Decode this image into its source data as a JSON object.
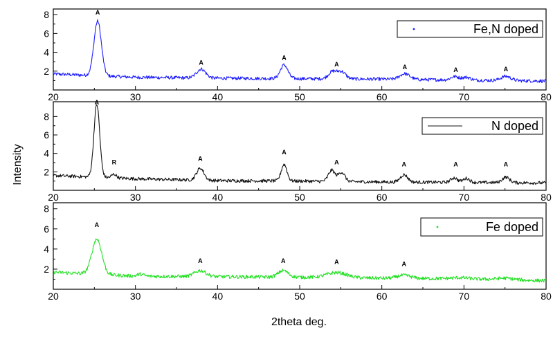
{
  "figure": {
    "ylabel": "Intensity",
    "xlabel": "2theta deg."
  },
  "chart_data": [
    {
      "type": "line",
      "legend": "Fe,N doped",
      "color": "#1a1aff",
      "xlim": [
        20,
        80
      ],
      "ylim": [
        0,
        8.6
      ],
      "xticks": [
        "20",
        "30",
        "40",
        "50",
        "60",
        "70",
        "80"
      ],
      "yticks": [
        "2",
        "4",
        "6",
        "8"
      ],
      "ytick_values": [
        2,
        4,
        6,
        8
      ],
      "baseline": [
        [
          20,
          1.7
        ],
        [
          30,
          1.35
        ],
        [
          40,
          1.25
        ],
        [
          50,
          1.2
        ],
        [
          60,
          1.15
        ],
        [
          70,
          1.05
        ],
        [
          80,
          0.95
        ]
      ],
      "peaks": [
        {
          "x": 25.4,
          "height": 5.8,
          "width": 0.45
        },
        {
          "x": 38.0,
          "height": 0.95,
          "width": 0.55
        },
        {
          "x": 48.1,
          "height": 1.45,
          "width": 0.45
        },
        {
          "x": 54.0,
          "height": 0.75,
          "width": 0.5
        },
        {
          "x": 55.1,
          "height": 0.75,
          "width": 0.5
        },
        {
          "x": 62.8,
          "height": 0.6,
          "width": 0.6
        },
        {
          "x": 68.9,
          "height": 0.35,
          "width": 0.5
        },
        {
          "x": 70.3,
          "height": 0.3,
          "width": 0.5
        },
        {
          "x": 75.1,
          "height": 0.45,
          "width": 0.6
        }
      ],
      "annotations": [
        {
          "text": "A",
          "x": 25.4,
          "y": 8.0
        },
        {
          "text": "A",
          "x": 38.0,
          "y": 2.7
        },
        {
          "text": "A",
          "x": 48.1,
          "y": 3.2
        },
        {
          "text": "A",
          "x": 54.5,
          "y": 2.5
        },
        {
          "text": "A",
          "x": 62.8,
          "y": 2.2
        },
        {
          "text": "A",
          "x": 69.0,
          "y": 1.9
        },
        {
          "text": "A",
          "x": 75.1,
          "y": 2.0
        }
      ]
    },
    {
      "type": "line",
      "legend": "N doped",
      "color": "#111111",
      "xlim": [
        20,
        80
      ],
      "ylim": [
        0,
        9.6
      ],
      "xticks": [
        "20",
        "30",
        "40",
        "50",
        "60",
        "70",
        "80"
      ],
      "yticks": [
        "2",
        "4",
        "6",
        "8"
      ],
      "ytick_values": [
        2,
        4,
        6,
        8
      ],
      "baseline": [
        [
          20,
          1.6
        ],
        [
          30,
          1.25
        ],
        [
          40,
          1.05
        ],
        [
          50,
          1.0
        ],
        [
          60,
          0.9
        ],
        [
          70,
          0.85
        ],
        [
          80,
          0.8
        ]
      ],
      "peaks": [
        {
          "x": 25.3,
          "height": 7.9,
          "width": 0.35
        },
        {
          "x": 27.4,
          "height": 0.4,
          "width": 0.3
        },
        {
          "x": 37.9,
          "height": 1.3,
          "width": 0.45
        },
        {
          "x": 48.1,
          "height": 1.8,
          "width": 0.35
        },
        {
          "x": 53.9,
          "height": 1.2,
          "width": 0.4
        },
        {
          "x": 55.1,
          "height": 1.0,
          "width": 0.4
        },
        {
          "x": 62.7,
          "height": 0.8,
          "width": 0.45
        },
        {
          "x": 68.8,
          "height": 0.5,
          "width": 0.4
        },
        {
          "x": 70.3,
          "height": 0.45,
          "width": 0.4
        },
        {
          "x": 75.1,
          "height": 0.6,
          "width": 0.45
        }
      ],
      "annotations": [
        {
          "text": "A",
          "x": 25.3,
          "y": 9.3
        },
        {
          "text": "R",
          "x": 27.4,
          "y": 2.8
        },
        {
          "text": "A",
          "x": 37.9,
          "y": 3.2
        },
        {
          "text": "A",
          "x": 48.1,
          "y": 3.9
        },
        {
          "text": "A",
          "x": 54.5,
          "y": 2.8
        },
        {
          "text": "A",
          "x": 62.7,
          "y": 2.6
        },
        {
          "text": "A",
          "x": 69.0,
          "y": 2.6
        },
        {
          "text": "A",
          "x": 75.1,
          "y": 2.6
        }
      ]
    },
    {
      "type": "line",
      "legend": "Fe doped",
      "color": "#22e022",
      "xlim": [
        20,
        80
      ],
      "ylim": [
        0,
        8.6
      ],
      "xticks": [
        "20",
        "30",
        "40",
        "50",
        "60",
        "70",
        "80"
      ],
      "yticks": [
        "2",
        "4",
        "6",
        "8"
      ],
      "ytick_values": [
        2,
        4,
        6,
        8
      ],
      "baseline": [
        [
          20,
          1.7
        ],
        [
          30,
          1.3
        ],
        [
          40,
          1.25
        ],
        [
          50,
          1.2
        ],
        [
          60,
          1.1
        ],
        [
          70,
          1.05
        ],
        [
          80,
          0.85
        ]
      ],
      "peaks": [
        {
          "x": 25.3,
          "height": 3.5,
          "width": 0.6
        },
        {
          "x": 30.6,
          "height": 0.2,
          "width": 0.4
        },
        {
          "x": 37.9,
          "height": 0.6,
          "width": 0.7
        },
        {
          "x": 48.0,
          "height": 0.65,
          "width": 0.6
        },
        {
          "x": 54.5,
          "height": 0.5,
          "width": 1.2
        },
        {
          "x": 62.7,
          "height": 0.3,
          "width": 0.8
        },
        {
          "x": 69.5,
          "height": 0.1,
          "width": 1.0
        },
        {
          "x": 75.0,
          "height": 0.15,
          "width": 1.0
        }
      ],
      "annotations": [
        {
          "text": "A",
          "x": 25.3,
          "y": 6.2
        },
        {
          "text": "A",
          "x": 37.9,
          "y": 2.6
        },
        {
          "text": "A",
          "x": 48.0,
          "y": 2.6
        },
        {
          "text": "A",
          "x": 54.5,
          "y": 2.5
        },
        {
          "text": "A",
          "x": 62.7,
          "y": 2.3
        }
      ]
    }
  ]
}
